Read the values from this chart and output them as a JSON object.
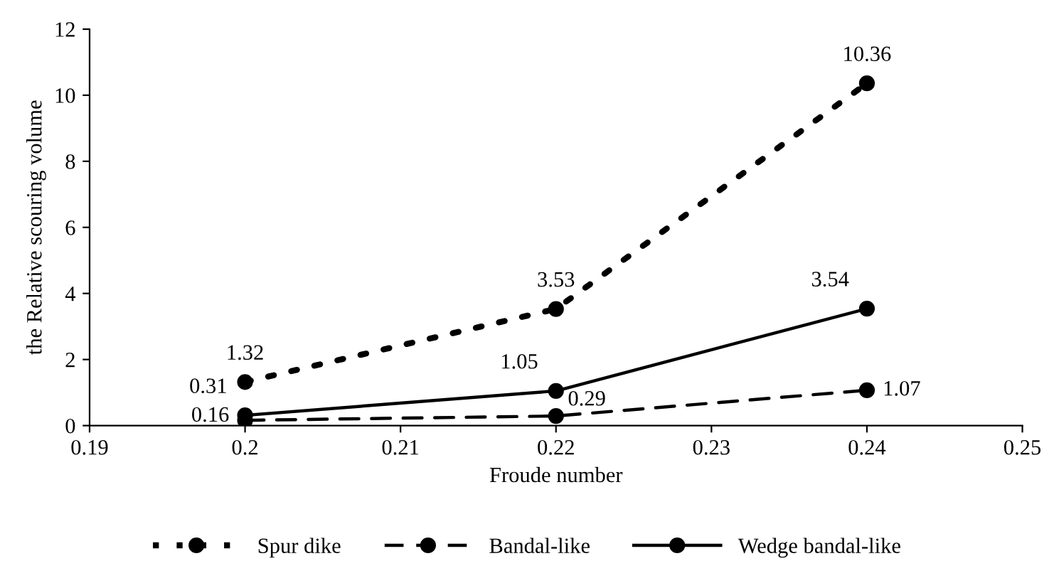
{
  "chart_data": {
    "type": "line",
    "xlabel": "Froude number",
    "ylabel": "the Relative scouring volume",
    "x": [
      0.2,
      0.22,
      0.24
    ],
    "series": [
      {
        "name": "Spur dike",
        "color": "#000000",
        "line_style": "dotted",
        "values": [
          1.32,
          3.53,
          10.36
        ]
      },
      {
        "name": "Bandal-like",
        "color": "#000000",
        "line_style": "dashed",
        "values": [
          0.16,
          0.29,
          1.07
        ]
      },
      {
        "name": "Wedge bandal-like",
        "color": "#000000",
        "line_style": "solid",
        "values": [
          0.31,
          1.05,
          3.54
        ]
      }
    ],
    "xlim": [
      0.19,
      0.25
    ],
    "xticks": [
      0.19,
      0.2,
      0.21,
      0.22,
      0.23,
      0.24,
      0.25
    ],
    "ylim": [
      0,
      12
    ],
    "yticks": [
      0,
      2,
      4,
      6,
      8,
      10,
      12
    ],
    "marker": "circle",
    "data_labels": true,
    "grid": false,
    "legend": "bottom"
  }
}
